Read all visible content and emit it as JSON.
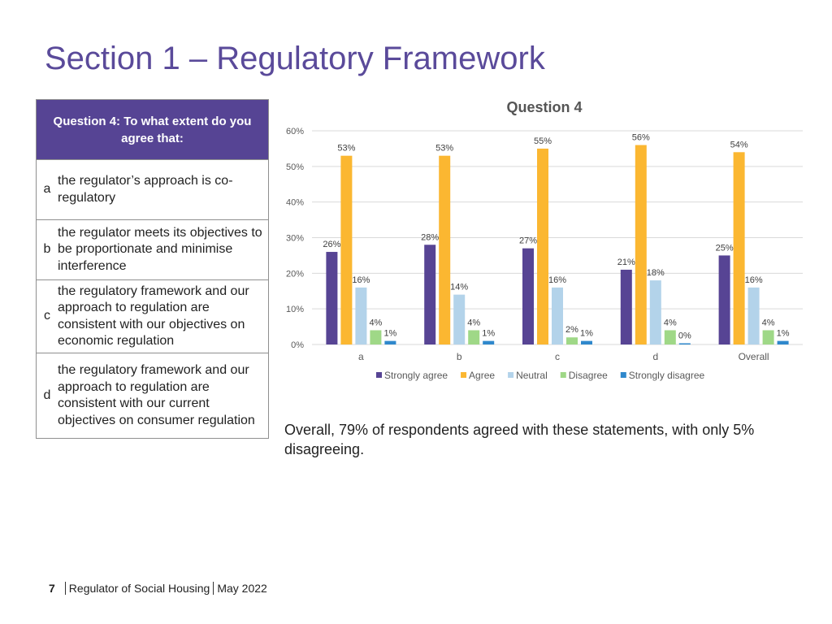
{
  "slide": {
    "title": "Section 1 – Regulatory Framework"
  },
  "question_table": {
    "header": "Question 4: To what extent do you agree that:",
    "rows": [
      {
        "letter": "a",
        "text": "the regulator’s approach is co-regulatory"
      },
      {
        "letter": "b",
        "text": "the regulator meets its objectives to be proportionate and minimise interference"
      },
      {
        "letter": "c",
        "text": "the regulatory framework and our approach to regulation are consistent with our objectives on economic regulation"
      },
      {
        "letter": "d",
        "text": "the regulatory framework and our approach to regulation are consistent with our current objectives on consumer regulation"
      }
    ]
  },
  "chart_data": {
    "type": "bar",
    "title": "Question 4",
    "categories": [
      "a",
      "b",
      "c",
      "d",
      "Overall"
    ],
    "series": [
      {
        "name": "Strongly agree",
        "color": "#574494",
        "values": [
          26,
          28,
          27,
          21,
          25
        ]
      },
      {
        "name": "Agree",
        "color": "#fbb731",
        "values": [
          53,
          53,
          55,
          56,
          54
        ]
      },
      {
        "name": "Neutral",
        "color": "#b3d3ea",
        "values": [
          16,
          14,
          16,
          18,
          16
        ]
      },
      {
        "name": "Disagree",
        "color": "#9fd887",
        "values": [
          4,
          4,
          2,
          4,
          4
        ]
      },
      {
        "name": "Strongly disagree",
        "color": "#2f88cc",
        "values": [
          1,
          1,
          1,
          0,
          1
        ]
      }
    ],
    "value_suffix": "%",
    "ylim": [
      0,
      60
    ],
    "yticks": [
      "0%",
      "10%",
      "20%",
      "30%",
      "40%",
      "50%",
      "60%"
    ],
    "grid": true,
    "legend_position": "bottom"
  },
  "summary": "Overall, 79% of respondents agreed with these statements, with only 5% disagreeing.",
  "footer": {
    "page_number": "7",
    "organisation": "Regulator of Social Housing",
    "date": "May 2022"
  }
}
